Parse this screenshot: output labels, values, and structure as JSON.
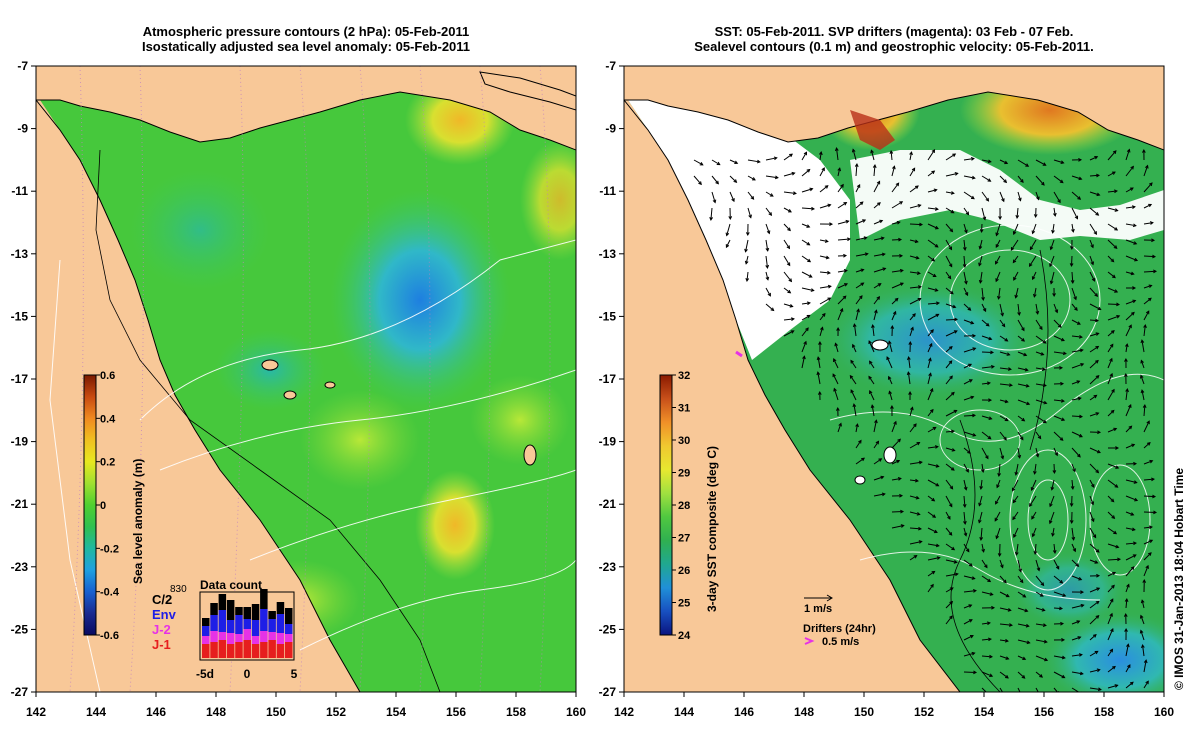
{
  "left_panel": {
    "title_line1": "Atmospheric pressure contours (2 hPa): 05-Feb-2011",
    "title_line2": "Isostatically adjusted sea level anomaly: 05-Feb-2011",
    "colorbar": {
      "label": "Sea level anomaly (m)",
      "ticks": [
        "0.6",
        "0.4",
        "0.2",
        "0",
        "-0.2",
        "-0.4",
        "-0.6"
      ],
      "colors": [
        "#7a1a00",
        "#c84a10",
        "#f08a20",
        "#f0c020",
        "#e8e820",
        "#a0e030",
        "#50d030",
        "#30c050",
        "#20b8a0",
        "#20a0e0",
        "#1860d0",
        "#1a2a90",
        "#0a0a60"
      ]
    },
    "data_count": {
      "title": "Data count",
      "ytick": "830",
      "xticks": [
        "-5d",
        "0",
        "5"
      ],
      "legend": [
        {
          "label": "C/2",
          "color": "#000000"
        },
        {
          "label": "Env",
          "color": "#1e1ee6"
        },
        {
          "label": "J-2",
          "color": "#e632e6"
        },
        {
          "label": "J-1",
          "color": "#e61e1e"
        }
      ]
    }
  },
  "right_panel": {
    "title_line1": "SST: 05-Feb-2011. SVP drifters (magenta): 03 Feb - 07 Feb.",
    "title_line2": "Sealevel contours (0.1 m) and geostrophic velocity: 05-Feb-2011.",
    "colorbar": {
      "label": "3-day SST composite (deg C)",
      "ticks": [
        "32",
        "31",
        "30",
        "29",
        "28",
        "27",
        "26",
        "25",
        "24"
      ],
      "colors": [
        "#8a1a00",
        "#c8501a",
        "#f09028",
        "#f0c830",
        "#e8e830",
        "#a0e040",
        "#50c840",
        "#30b050",
        "#20a890",
        "#2090d8",
        "#1850c0",
        "#0a1480"
      ]
    },
    "velocity_key": "1 m/s",
    "drifter_key_title": "Drifters (24hr)",
    "drifter_key_value": "0.5 m/s"
  },
  "axes": {
    "x_ticks": [
      "142",
      "144",
      "146",
      "148",
      "150",
      "152",
      "154",
      "156",
      "158",
      "160"
    ],
    "y_ticks": [
      "-7",
      "-9",
      "-11",
      "-13",
      "-15",
      "-17",
      "-19",
      "-21",
      "-23",
      "-25",
      "-27"
    ]
  },
  "credit": "© IMOS 31-Jan-2013 18:04 Hobart Time",
  "colors": {
    "land": "#f8c898",
    "ocean_green": "#46c83c",
    "contour_white": "#ffffff"
  }
}
